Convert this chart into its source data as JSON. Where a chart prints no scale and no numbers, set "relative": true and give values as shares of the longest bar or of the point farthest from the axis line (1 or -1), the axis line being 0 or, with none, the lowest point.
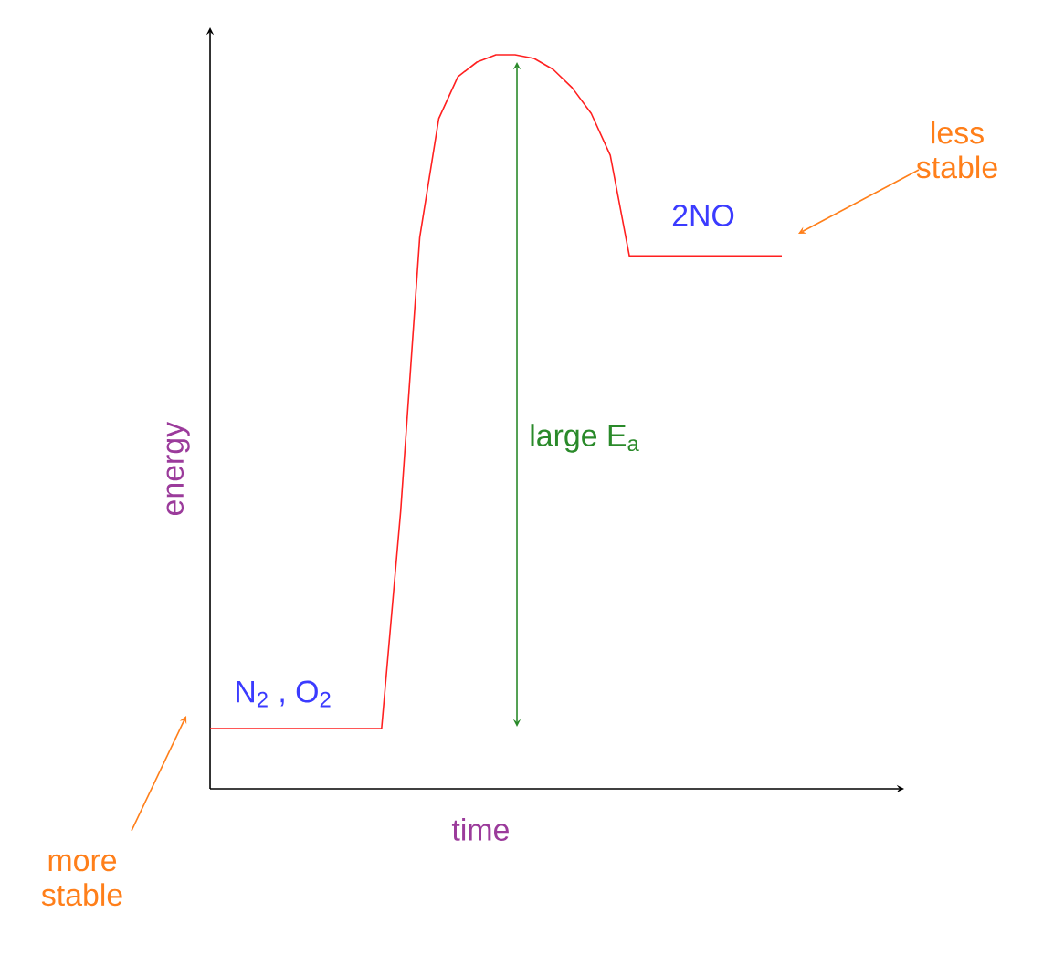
{
  "chart_data": {
    "type": "line",
    "relative": true,
    "xlabel": "time",
    "ylabel": "energy",
    "categories": [
      null,
      null,
      null,
      null,
      null,
      null,
      null,
      null,
      null,
      null,
      null,
      null,
      null,
      null,
      null,
      null,
      null,
      null,
      null,
      null,
      null,
      null,
      null,
      null,
      null,
      null,
      null,
      null,
      null,
      null,
      null
    ],
    "series": [
      {
        "color": "#ff2020",
        "values": [
          0.082,
          0.082,
          0.082,
          0.082,
          0.082,
          0.082,
          0.082,
          0.082,
          0.082,
          0.082,
          0.378,
          0.751,
          0.913,
          0.97,
          0.99,
          1.0,
          1.0,
          0.995,
          0.98,
          0.955,
          0.92,
          0.863,
          0.726,
          0.726,
          0.726,
          0.726,
          0.726,
          0.726,
          0.726,
          0.726,
          0.726
        ]
      }
    ],
    "annotations": [
      "N$_{2}$ , O$_{2}$",
      "2NO",
      "large E$_{a}$",
      "less stable",
      "more stable"
    ]
  }
}
